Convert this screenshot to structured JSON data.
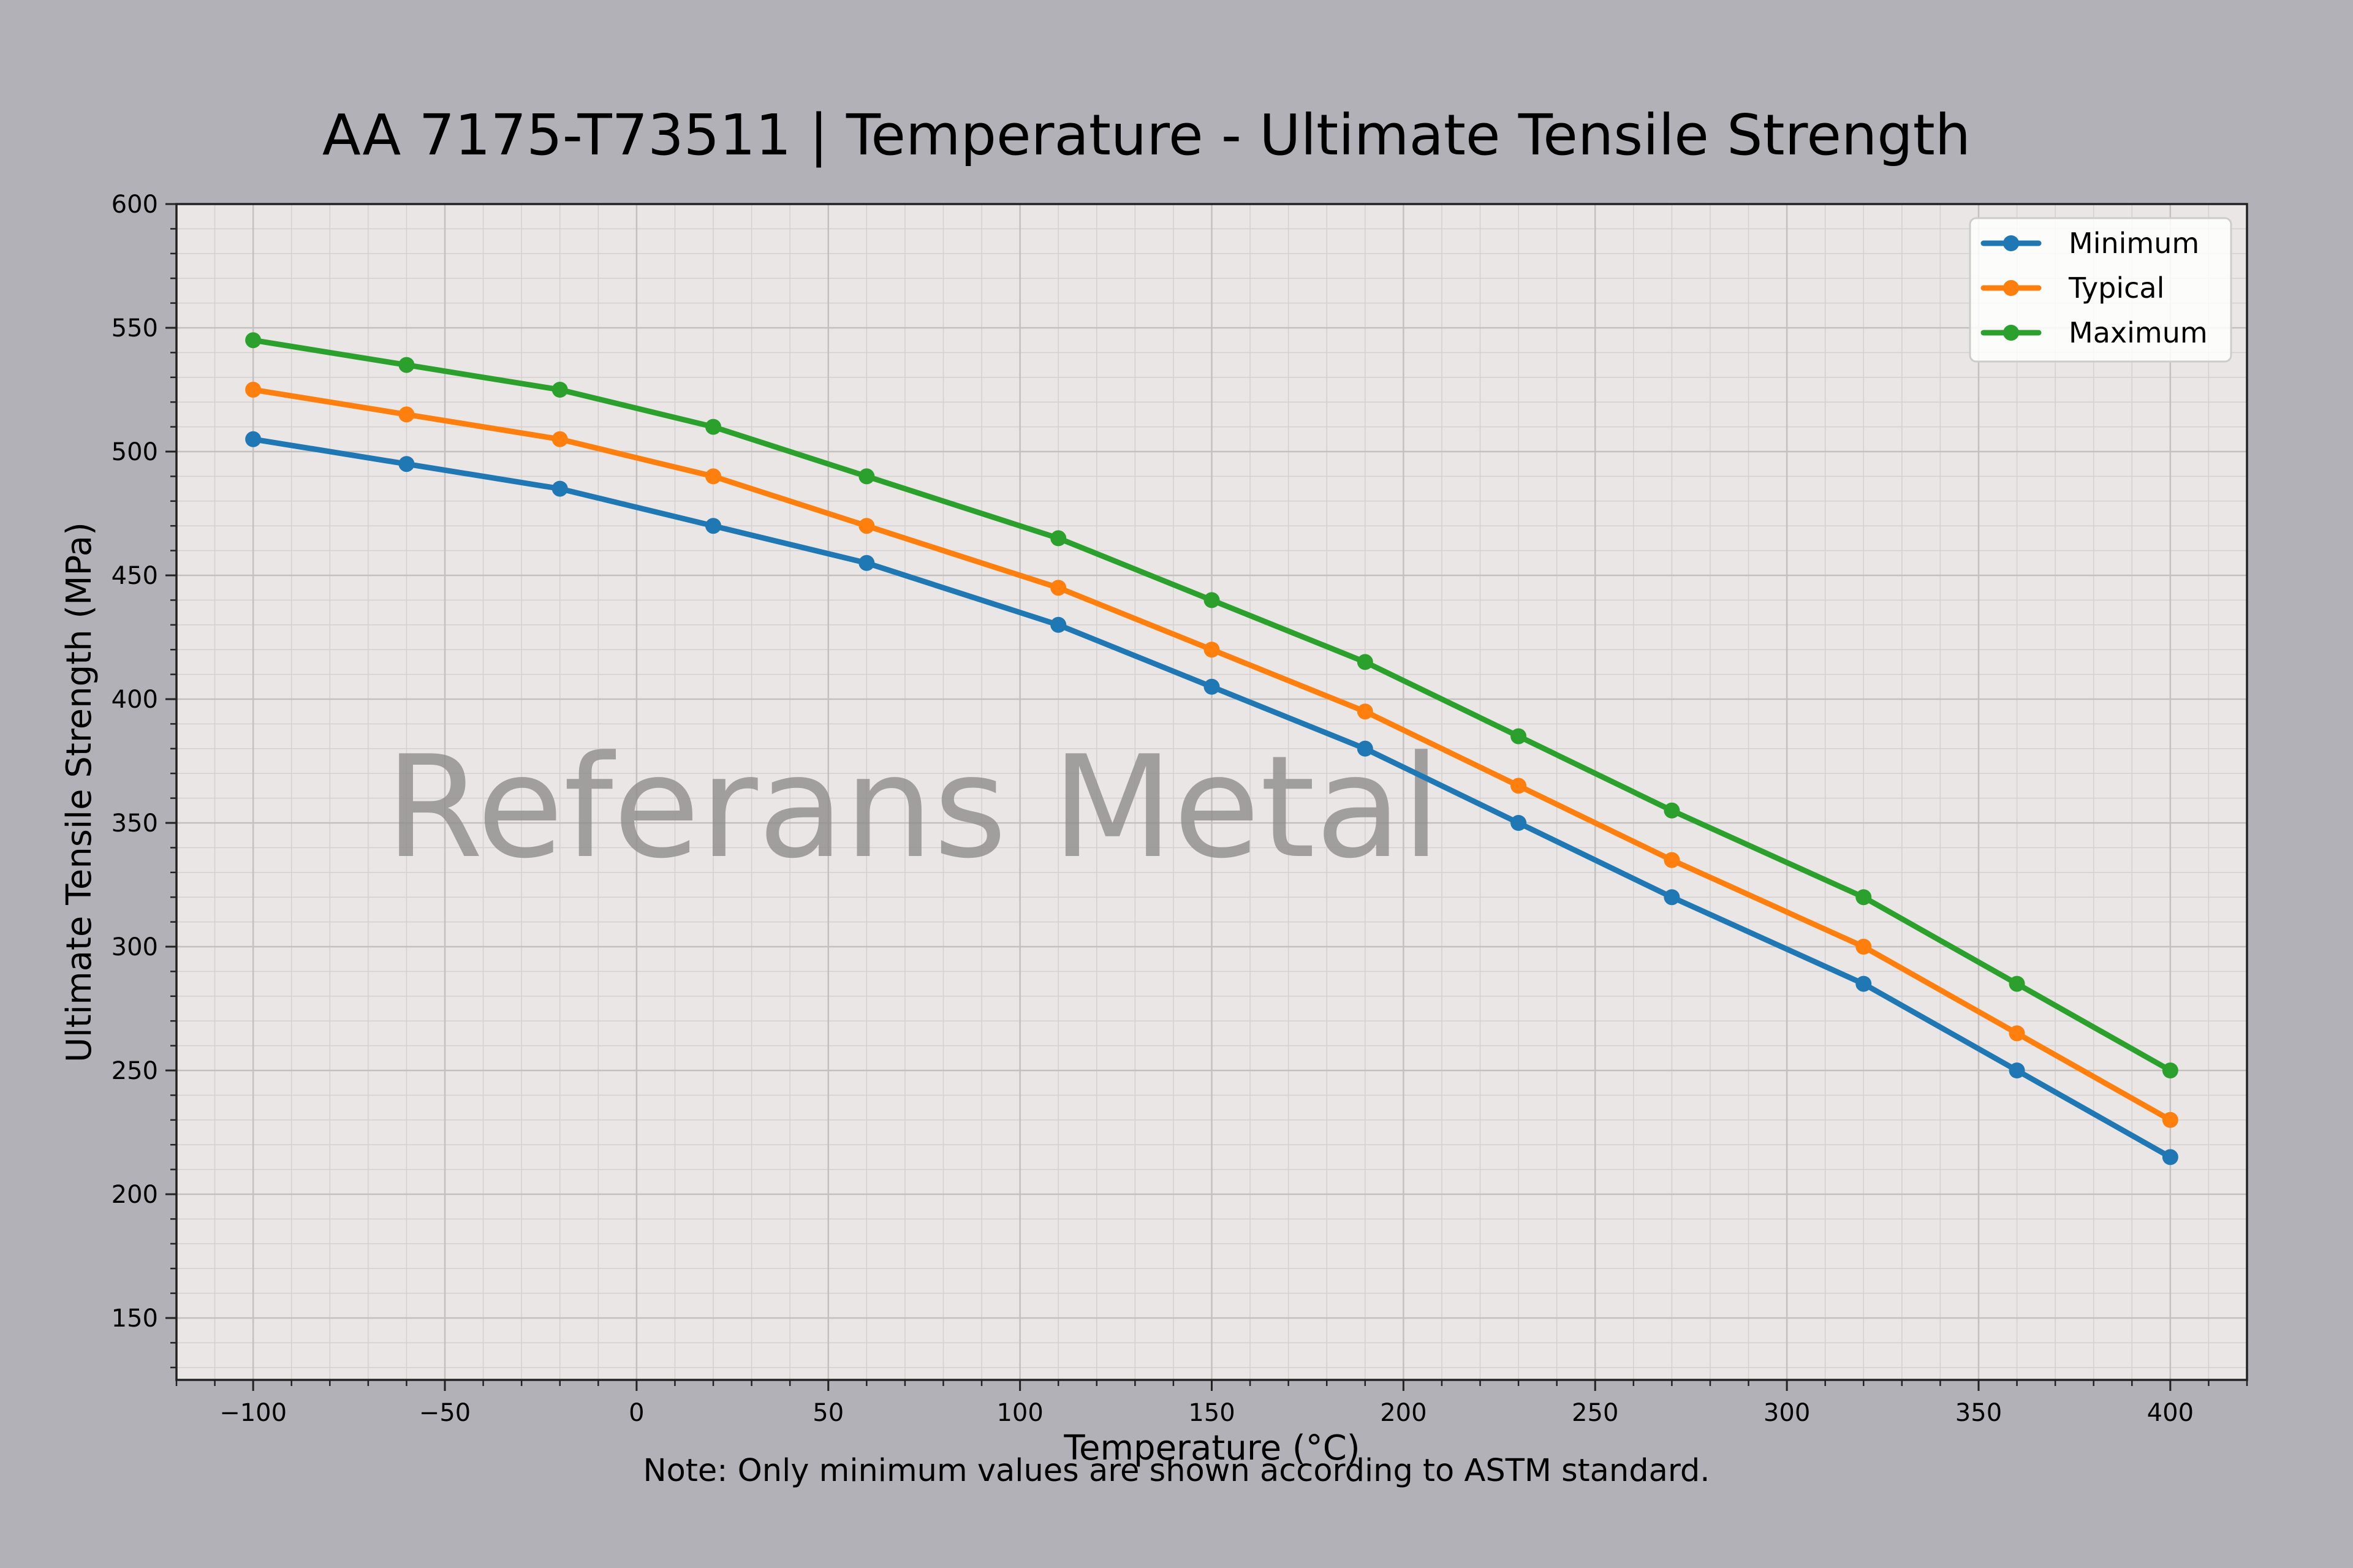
{
  "colors": {
    "figure_bg": "#b2b1b7",
    "plot_bg": "#eae6e5",
    "minimum": "#1f77b4",
    "typical": "#ff7f0e",
    "maximum": "#2ca02c",
    "watermark": "#8f8c8c"
  },
  "chart_data": {
    "type": "line",
    "title": "AA 7175-T73511 | Temperature - Ultimate Tensile Strength",
    "xlabel": "Temperature (°C)",
    "ylabel": "Ultimate Tensile Strength (MPa)",
    "note": "Note: Only minimum values are shown according to ASTM standard.",
    "watermark": "Referans Metal",
    "xlim": [
      -120,
      420
    ],
    "ylim": [
      125,
      600
    ],
    "xticks": [
      -100,
      -50,
      0,
      50,
      100,
      150,
      200,
      250,
      300,
      350,
      400
    ],
    "xtick_labels": [
      "−100",
      "−50",
      "0",
      "50",
      "100",
      "150",
      "200",
      "250",
      "300",
      "350",
      "400"
    ],
    "yticks": [
      150,
      200,
      250,
      300,
      350,
      400,
      450,
      500,
      550,
      600
    ],
    "ytick_labels": [
      "150",
      "200",
      "250",
      "300",
      "350",
      "400",
      "450",
      "500",
      "550",
      "600"
    ],
    "grid": true,
    "legend_position": "top-right",
    "x": [
      -100,
      -60,
      -20,
      20,
      60,
      110,
      150,
      190,
      230,
      270,
      320,
      360,
      400
    ],
    "series": [
      {
        "name": "Minimum",
        "color": "#1f77b4",
        "values": [
          505,
          495,
          485,
          470,
          455,
          430,
          405,
          380,
          350,
          320,
          285,
          250,
          215
        ]
      },
      {
        "name": "Typical",
        "color": "#ff7f0e",
        "values": [
          525,
          515,
          505,
          490,
          470,
          445,
          420,
          395,
          365,
          335,
          300,
          265,
          230
        ]
      },
      {
        "name": "Maximum",
        "color": "#2ca02c",
        "values": [
          545,
          535,
          525,
          510,
          490,
          465,
          440,
          415,
          385,
          355,
          320,
          285,
          250
        ]
      }
    ]
  }
}
